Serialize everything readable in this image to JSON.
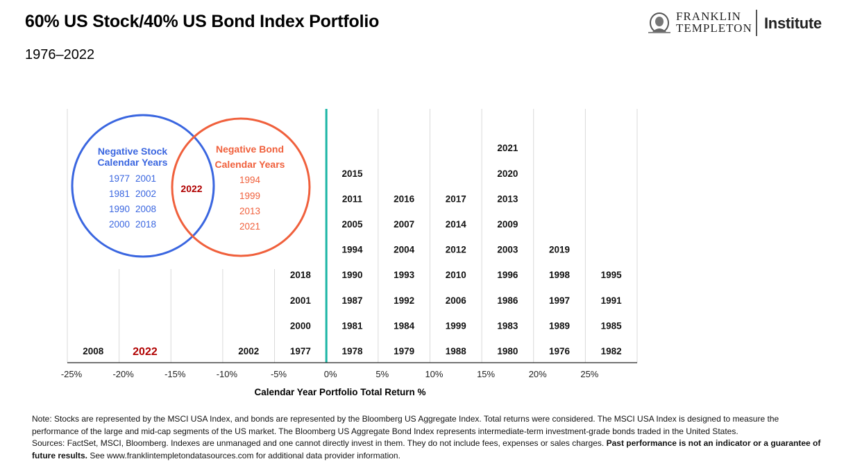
{
  "header": {
    "title": "60% US Stock/40% US Bond Index Portfolio",
    "subtitle": "1976–2022"
  },
  "logo": {
    "line1": "FRANKLIN",
    "line2": "TEMPLETON",
    "institute": "Institute",
    "icon": "franklin-portrait-icon"
  },
  "chart_data": {
    "type": "table",
    "title": "60% US Stock/40% US Bond Index Portfolio",
    "subtitle": "1976–2022",
    "xlabel": "Calendar Year Portfolio Total Return %",
    "ylabel": "",
    "x_ticks": [
      "-25%",
      "-20%",
      "-15%",
      "-10%",
      "-5%",
      "0%",
      "5%",
      "10%",
      "15%",
      "20%",
      "25%"
    ],
    "xlim": [
      -25,
      30
    ],
    "grid": true,
    "zero_line_color": "#1bb5a5",
    "highlight_year": "2022",
    "highlight_color": "#b00000",
    "bins": [
      {
        "range": [
          -25,
          -20
        ],
        "years": [
          "2008"
        ]
      },
      {
        "range": [
          -20,
          -15
        ],
        "years": [
          "2022"
        ]
      },
      {
        "range": [
          -15,
          -10
        ],
        "years": []
      },
      {
        "range": [
          -10,
          -5
        ],
        "years": [
          "2002"
        ]
      },
      {
        "range": [
          -5,
          0
        ],
        "years": [
          "1977",
          "2000",
          "2001",
          "2018"
        ]
      },
      {
        "range": [
          0,
          5
        ],
        "years": [
          "1978",
          "1981",
          "1987",
          "1990",
          "1994",
          "2005",
          "2011",
          "2015"
        ]
      },
      {
        "range": [
          5,
          10
        ],
        "years": [
          "1979",
          "1984",
          "1992",
          "1993",
          "2004",
          "2007",
          "2016"
        ]
      },
      {
        "range": [
          10,
          15
        ],
        "years": [
          "1988",
          "1999",
          "2006",
          "2010",
          "2012",
          "2014",
          "2017"
        ]
      },
      {
        "range": [
          15,
          20
        ],
        "years": [
          "1980",
          "1983",
          "1986",
          "1996",
          "2003",
          "2009",
          "2013",
          "2020",
          "2021"
        ]
      },
      {
        "range": [
          20,
          25
        ],
        "years": [
          "1976",
          "1989",
          "1997",
          "1998",
          "2019"
        ]
      },
      {
        "range": [
          25,
          30
        ],
        "years": [
          "1982",
          "1985",
          "1991",
          "1995"
        ]
      }
    ],
    "counts": [
      1,
      1,
      0,
      1,
      4,
      8,
      7,
      7,
      9,
      5,
      4
    ]
  },
  "venn": {
    "stock": {
      "title_line1": "Negative Stock",
      "title_line2": "Calendar Years",
      "color": "#3a66e0",
      "years": [
        [
          "1977",
          "2001"
        ],
        [
          "1981",
          "2002"
        ],
        [
          "1990",
          "2008"
        ],
        [
          "2000",
          "2018"
        ]
      ]
    },
    "bond": {
      "title_line1": "Negative Bond",
      "title_line2": "Calendar Years",
      "color": "#f0603c",
      "years": [
        "1994",
        "1999",
        "2013",
        "2021"
      ]
    },
    "overlap": {
      "year": "2022",
      "color": "#b00000"
    }
  },
  "notes": {
    "line1": "Note: Stocks are represented by the MSCI USA Index, and bonds are represented by the Bloomberg US Aggregate Index. Total returns were considered. The MSCI USA Index is designed to measure the performance of the large and mid-cap segments of the US market. The Bloomberg US Aggregate Bond Index represents intermediate-term investment-grade bonds traded in the United States.",
    "sources": "Sources: FactSet, MSCI, Bloomberg. Indexes are unmanaged and one cannot directly invest in them. They do not include fees, expenses or sales charges.",
    "disclaimer_bold": "Past performance is not an indicator or a guarantee of future results.",
    "see_more": "See www.franklintempletondatasources.com for additional data provider information."
  }
}
